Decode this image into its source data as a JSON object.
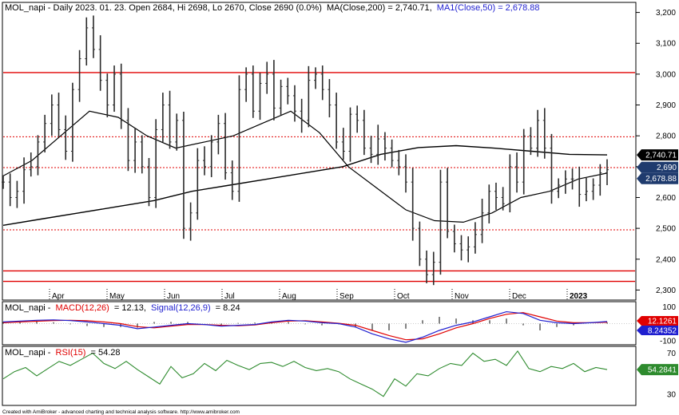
{
  "chart_data": [
    {
      "type": "line",
      "panel": "price",
      "title": "MOL_napi - Daily 2023. 01. 23. Open 2684, Hi 2698, Lo 2670, Close 2690 (0.0%)",
      "ma200_label": "MA(Close,200) = 2,740.71,",
      "ma50_label": "MA1(Close,50) = 2,678.88",
      "ylim": [
        2270,
        3230
      ],
      "yticks": [
        2300,
        2400,
        2500,
        2600,
        2700,
        2800,
        2900,
        3000,
        3100,
        3200
      ],
      "ytick_labels": [
        "2,300",
        "2,400",
        "2,500",
        "2,600",
        "2,700",
        "2,800",
        "2,900",
        "3,000",
        "3,100",
        "3,200"
      ],
      "x_labels": [
        "Apr",
        "May",
        "Jun",
        "Jul",
        "Aug",
        "Sep",
        "Oct",
        "Nov",
        "Dec",
        "2023"
      ],
      "horizontal_levels": [
        {
          "value": 3005,
          "style": "solid"
        },
        {
          "value": 2797,
          "style": "dotted"
        },
        {
          "value": 2697,
          "style": "dotted"
        },
        {
          "value": 2495,
          "style": "dotted"
        },
        {
          "value": 2362,
          "style": "solid"
        },
        {
          "value": 2328,
          "style": "solid"
        }
      ],
      "price_close": [
        2650,
        2600,
        2620,
        2690,
        2700,
        2780,
        2840,
        2900,
        2820,
        2750,
        2950,
        3050,
        3150,
        3080,
        2980,
        2900,
        3000,
        2850,
        2720,
        2780,
        2700,
        2600,
        2820,
        2900,
        2780,
        2850,
        2500,
        2550,
        2720,
        2700,
        2780,
        2840,
        2680,
        2620,
        2950,
        3000,
        2880,
        2970,
        3000,
        2890,
        2960,
        2930,
        2880,
        2850,
        2980,
        3000,
        2950,
        2900,
        2780,
        2750,
        2870,
        2850,
        2760,
        2740,
        2790,
        2760,
        2720,
        2700,
        2650,
        2500,
        2400,
        2350,
        2390,
        2650,
        2490,
        2450,
        2430,
        2440,
        2480,
        2550,
        2620,
        2600,
        2580,
        2700,
        2650,
        2800,
        2760,
        2850,
        2760,
        2620,
        2640,
        2660,
        2660,
        2610,
        2620,
        2640,
        2680,
        2690
      ],
      "ma200": [
        2510,
        2530,
        2550,
        2570,
        2590,
        2620,
        2640,
        2660,
        2680,
        2700,
        2740,
        2762,
        2768,
        2760,
        2750,
        2740,
        2738
      ],
      "ma50": [
        2670,
        2720,
        2800,
        2880,
        2860,
        2800,
        2760,
        2780,
        2800,
        2840,
        2880,
        2810,
        2700,
        2630,
        2560,
        2525,
        2520,
        2550,
        2600,
        2620,
        2660,
        2679
      ],
      "current_value_tags": [
        "2,740.71",
        "2,690",
        "2,678.88"
      ],
      "colors": {
        "price": "#2b2b2b",
        "ma": "#000000",
        "level": "#e00000",
        "macd": "#1f1fcf",
        "signal": "#e00000",
        "rsi": "#2e8b2e"
      }
    },
    {
      "type": "line",
      "panel": "macd",
      "label_prefix": "MOL_napi -",
      "macd_name": "MACD(12,26)",
      "macd_value": "= 12.13,",
      "signal_name": "Signal(12,26,9)",
      "signal_value": "= 8.24",
      "ylim": [
        -120,
        120
      ],
      "yticks": [
        100,
        -100
      ],
      "ytick_labels": [
        "100",
        "-100"
      ],
      "tags": [
        "12.1261",
        "8.24352"
      ],
      "macd": [
        10,
        15,
        20,
        22,
        18,
        10,
        0,
        -10,
        -30,
        -20,
        -10,
        0,
        -5,
        -15,
        -10,
        -5,
        10,
        20,
        15,
        5,
        0,
        -20,
        -60,
        -90,
        -110,
        -80,
        -40,
        -10,
        10,
        40,
        70,
        60,
        20,
        5,
        0,
        5,
        12
      ],
      "signal": [
        5,
        10,
        14,
        18,
        20,
        17,
        10,
        0,
        -18,
        -25,
        -15,
        -5,
        -5,
        -10,
        -12,
        -8,
        5,
        15,
        17,
        10,
        2,
        -10,
        -40,
        -70,
        -95,
        -90,
        -60,
        -25,
        0,
        30,
        55,
        65,
        40,
        15,
        5,
        5,
        8
      ]
    },
    {
      "type": "line",
      "panel": "rsi",
      "label_prefix": "MOL_napi -",
      "rsi_name": "RSI(15)",
      "rsi_value": "= 54.28",
      "ylim": [
        20,
        75
      ],
      "yticks": [
        70,
        30
      ],
      "ytick_labels": [
        "70",
        "30"
      ],
      "tag": "54.2841",
      "rsi": [
        45,
        52,
        56,
        48,
        55,
        62,
        58,
        64,
        70,
        60,
        55,
        62,
        54,
        47,
        40,
        57,
        46,
        50,
        60,
        53,
        63,
        58,
        54,
        60,
        61,
        57,
        62,
        56,
        53,
        55,
        52,
        45,
        40,
        35,
        28,
        45,
        38,
        50,
        48,
        55,
        60,
        58,
        70,
        62,
        64,
        58,
        72,
        55,
        52,
        57,
        55,
        60,
        52,
        56,
        54
      ]
    }
  ],
  "footer": "Created with AmiBroker - advanced charting and technical analysis software. http://www.amibroker.com"
}
